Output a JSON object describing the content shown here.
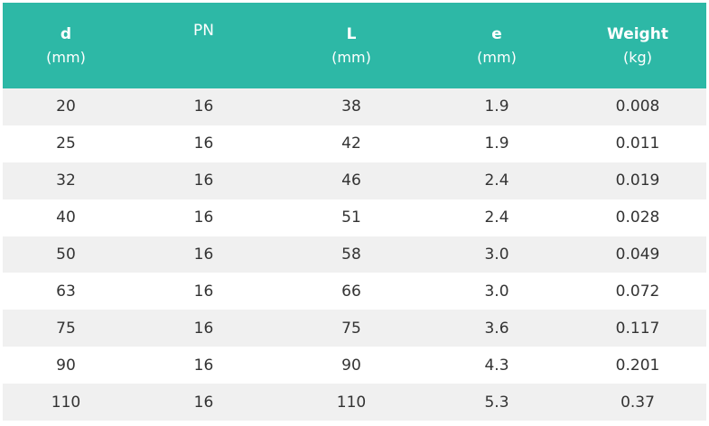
{
  "colors": {
    "header_bg": "#2db8a6",
    "header_text": "#ffffff",
    "row_alt_bg": "#f0f0f0",
    "row_bg": "#ffffff",
    "cell_text": "#333333"
  },
  "table": {
    "headers": [
      {
        "name": "d",
        "unit": "(mm)"
      },
      {
        "name": "PN",
        "unit": ""
      },
      {
        "name": "L",
        "unit": "(mm)"
      },
      {
        "name": "e",
        "unit": "(mm)"
      },
      {
        "name": "Weight",
        "unit": "(kg)"
      }
    ],
    "rows": [
      [
        "20",
        "16",
        "38",
        "1.9",
        "0.008"
      ],
      [
        "25",
        "16",
        "42",
        "1.9",
        "0.011"
      ],
      [
        "32",
        "16",
        "46",
        "2.4",
        "0.019"
      ],
      [
        "40",
        "16",
        "51",
        "2.4",
        "0.028"
      ],
      [
        "50",
        "16",
        "58",
        "3.0",
        "0.049"
      ],
      [
        "63",
        "16",
        "66",
        "3.0",
        "0.072"
      ],
      [
        "75",
        "16",
        "75",
        "3.6",
        "0.117"
      ],
      [
        "90",
        "16",
        "90",
        "4.3",
        "0.201"
      ],
      [
        "110",
        "16",
        "110",
        "5.3",
        "0.37"
      ]
    ]
  }
}
